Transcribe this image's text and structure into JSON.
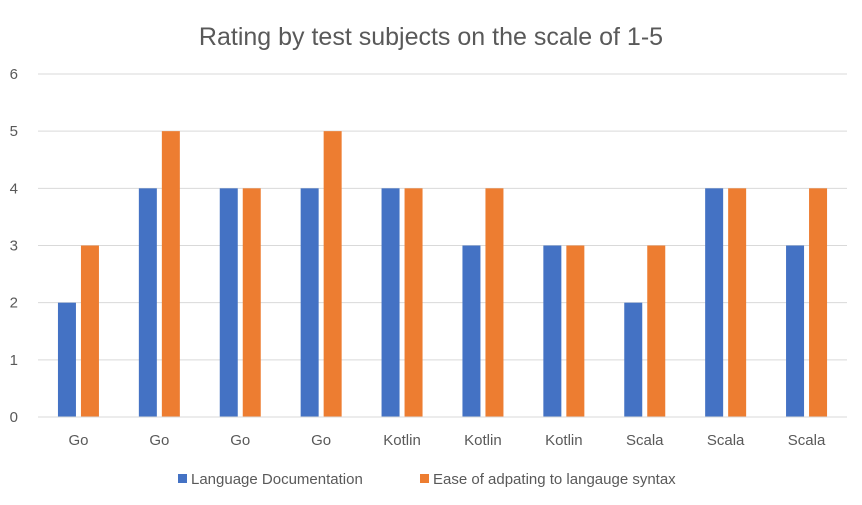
{
  "chart_data": {
    "type": "bar",
    "title": "Rating by test subjects on the scale of 1-5",
    "xlabel": "",
    "ylabel": "",
    "categories": [
      "Go",
      "Go",
      "Go",
      "Go",
      "Kotlin",
      "Kotlin",
      "Kotlin",
      "Scala",
      "Scala",
      "Scala"
    ],
    "series": [
      {
        "name": "Language Documentation",
        "color": "#4472C4",
        "values": [
          2,
          4,
          4,
          4,
          4,
          3,
          3,
          2,
          4,
          3
        ]
      },
      {
        "name": "Ease of adpating to langauge syntax",
        "color": "#ED7D31",
        "values": [
          3,
          5,
          4,
          5,
          4,
          4,
          3,
          3,
          4,
          4
        ]
      }
    ],
    "ylim": [
      0,
      6
    ],
    "yticks": [
      0,
      1,
      2,
      3,
      4,
      5,
      6
    ],
    "grid": true,
    "legend_position": "bottom"
  }
}
